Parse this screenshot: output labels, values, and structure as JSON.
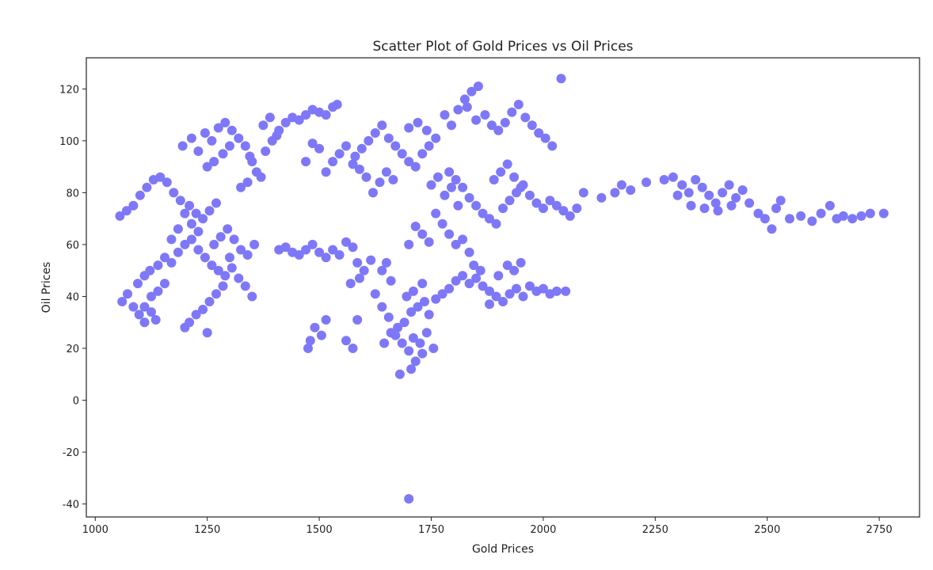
{
  "chart_data": {
    "type": "scatter",
    "title": "Scatter Plot of Gold Prices vs Oil Prices",
    "xlabel": "Gold Prices",
    "ylabel": "Oil Prices",
    "xlim": [
      980,
      2840
    ],
    "ylim": [
      -45,
      132
    ],
    "xticks": [
      1000,
      1250,
      1500,
      1750,
      2000,
      2250,
      2500,
      2750
    ],
    "yticks": [
      -40,
      -20,
      0,
      20,
      40,
      60,
      80,
      100,
      120
    ],
    "grid": false,
    "color": "#7e78f8",
    "series": [
      {
        "values": [
          [
            1055,
            71
          ],
          [
            1070,
            73
          ],
          [
            1085,
            75
          ],
          [
            1100,
            79
          ],
          [
            1115,
            82
          ],
          [
            1130,
            85
          ],
          [
            1145,
            86
          ],
          [
            1160,
            84
          ],
          [
            1175,
            80
          ],
          [
            1190,
            77
          ],
          [
            1210,
            75
          ],
          [
            1225,
            72
          ],
          [
            1240,
            70
          ],
          [
            1255,
            73
          ],
          [
            1270,
            76
          ],
          [
            1195,
            98
          ],
          [
            1215,
            101
          ],
          [
            1230,
            96
          ],
          [
            1245,
            103
          ],
          [
            1260,
            100
          ],
          [
            1275,
            105
          ],
          [
            1290,
            107
          ],
          [
            1305,
            104
          ],
          [
            1320,
            101
          ],
          [
            1335,
            98
          ],
          [
            1345,
            94
          ],
          [
            1285,
            95
          ],
          [
            1300,
            98
          ],
          [
            1265,
            92
          ],
          [
            1250,
            90
          ],
          [
            1350,
            92
          ],
          [
            1360,
            88
          ],
          [
            1370,
            86
          ],
          [
            1340,
            84
          ],
          [
            1325,
            82
          ],
          [
            1380,
            96
          ],
          [
            1395,
            100
          ],
          [
            1410,
            104
          ],
          [
            1425,
            107
          ],
          [
            1440,
            109
          ],
          [
            1455,
            108
          ],
          [
            1470,
            110
          ],
          [
            1485,
            112
          ],
          [
            1500,
            111
          ],
          [
            1515,
            110
          ],
          [
            1530,
            113
          ],
          [
            1540,
            114
          ],
          [
            1375,
            106
          ],
          [
            1390,
            109
          ],
          [
            1405,
            102
          ],
          [
            1060,
            38
          ],
          [
            1072,
            41
          ],
          [
            1085,
            36
          ],
          [
            1098,
            33
          ],
          [
            1110,
            30
          ],
          [
            1125,
            34
          ],
          [
            1135,
            31
          ],
          [
            1095,
            45
          ],
          [
            1110,
            48
          ],
          [
            1122,
            50
          ],
          [
            1140,
            52
          ],
          [
            1155,
            55
          ],
          [
            1170,
            53
          ],
          [
            1185,
            57
          ],
          [
            1200,
            60
          ],
          [
            1215,
            62
          ],
          [
            1230,
            58
          ],
          [
            1245,
            55
          ],
          [
            1260,
            52
          ],
          [
            1275,
            50
          ],
          [
            1290,
            48
          ],
          [
            1305,
            51
          ],
          [
            1320,
            47
          ],
          [
            1335,
            44
          ],
          [
            1350,
            40
          ],
          [
            1265,
            60
          ],
          [
            1280,
            63
          ],
          [
            1295,
            66
          ],
          [
            1310,
            62
          ],
          [
            1325,
            58
          ],
          [
            1340,
            56
          ],
          [
            1355,
            60
          ],
          [
            1300,
            55
          ],
          [
            1285,
            44
          ],
          [
            1270,
            41
          ],
          [
            1255,
            38
          ],
          [
            1240,
            35
          ],
          [
            1225,
            33
          ],
          [
            1210,
            30
          ],
          [
            1200,
            28
          ],
          [
            1250,
            26
          ],
          [
            1230,
            65
          ],
          [
            1215,
            68
          ],
          [
            1200,
            72
          ],
          [
            1185,
            66
          ],
          [
            1170,
            62
          ],
          [
            1155,
            45
          ],
          [
            1140,
            42
          ],
          [
            1125,
            40
          ],
          [
            1110,
            36
          ],
          [
            1410,
            58
          ],
          [
            1425,
            59
          ],
          [
            1440,
            57
          ],
          [
            1455,
            56
          ],
          [
            1470,
            58
          ],
          [
            1485,
            60
          ],
          [
            1500,
            57
          ],
          [
            1515,
            55
          ],
          [
            1530,
            58
          ],
          [
            1545,
            56
          ],
          [
            1560,
            61
          ],
          [
            1575,
            59
          ],
          [
            1585,
            53
          ],
          [
            1600,
            50
          ],
          [
            1615,
            54
          ],
          [
            1570,
            45
          ],
          [
            1590,
            47
          ],
          [
            1480,
            23
          ],
          [
            1490,
            28
          ],
          [
            1505,
            25
          ],
          [
            1515,
            31
          ],
          [
            1475,
            20
          ],
          [
            1560,
            23
          ],
          [
            1575,
            20
          ],
          [
            1585,
            31
          ],
          [
            1640,
            50
          ],
          [
            1650,
            53
          ],
          [
            1660,
            46
          ],
          [
            1625,
            41
          ],
          [
            1640,
            36
          ],
          [
            1655,
            32
          ],
          [
            1670,
            25
          ],
          [
            1685,
            22
          ],
          [
            1700,
            19
          ],
          [
            1715,
            15
          ],
          [
            1730,
            18
          ],
          [
            1710,
            24
          ],
          [
            1725,
            22
          ],
          [
            1740,
            26
          ],
          [
            1755,
            20
          ],
          [
            1745,
            33
          ],
          [
            1735,
            38
          ],
          [
            1720,
            36
          ],
          [
            1705,
            34
          ],
          [
            1690,
            30
          ],
          [
            1675,
            28
          ],
          [
            1660,
            26
          ],
          [
            1645,
            22
          ],
          [
            1680,
            10
          ],
          [
            1705,
            12
          ],
          [
            1695,
            40
          ],
          [
            1710,
            42
          ],
          [
            1730,
            45
          ],
          [
            1760,
            39
          ],
          [
            1775,
            41
          ],
          [
            1790,
            43
          ],
          [
            1805,
            46
          ],
          [
            1820,
            48
          ],
          [
            1835,
            45
          ],
          [
            1850,
            47
          ],
          [
            1865,
            44
          ],
          [
            1880,
            42
          ],
          [
            1895,
            40
          ],
          [
            1910,
            38
          ],
          [
            1925,
            41
          ],
          [
            1940,
            43
          ],
          [
            1955,
            40
          ],
          [
            1970,
            44
          ],
          [
            1985,
            42
          ],
          [
            2000,
            43
          ],
          [
            2015,
            41
          ],
          [
            2030,
            42
          ],
          [
            2050,
            42
          ],
          [
            1880,
            37
          ],
          [
            1900,
            48
          ],
          [
            1920,
            52
          ],
          [
            1935,
            50
          ],
          [
            1950,
            53
          ],
          [
            1860,
            50
          ],
          [
            1845,
            52
          ],
          [
            1580,
            94
          ],
          [
            1595,
            97
          ],
          [
            1610,
            100
          ],
          [
            1625,
            103
          ],
          [
            1640,
            106
          ],
          [
            1655,
            101
          ],
          [
            1670,
            98
          ],
          [
            1685,
            95
          ],
          [
            1700,
            92
          ],
          [
            1715,
            90
          ],
          [
            1730,
            95
          ],
          [
            1745,
            98
          ],
          [
            1760,
            101
          ],
          [
            1650,
            88
          ],
          [
            1665,
            85
          ],
          [
            1635,
            84
          ],
          [
            1620,
            80
          ],
          [
            1605,
            86
          ],
          [
            1590,
            89
          ],
          [
            1575,
            91
          ],
          [
            1560,
            98
          ],
          [
            1545,
            95
          ],
          [
            1530,
            92
          ],
          [
            1515,
            88
          ],
          [
            1500,
            97
          ],
          [
            1485,
            99
          ],
          [
            1470,
            92
          ],
          [
            1700,
            105
          ],
          [
            1720,
            107
          ],
          [
            1740,
            104
          ],
          [
            1780,
            110
          ],
          [
            1795,
            106
          ],
          [
            1810,
            112
          ],
          [
            1825,
            116
          ],
          [
            1840,
            119
          ],
          [
            1855,
            121
          ],
          [
            1830,
            113
          ],
          [
            1850,
            108
          ],
          [
            1870,
            110
          ],
          [
            1885,
            106
          ],
          [
            1900,
            104
          ],
          [
            1915,
            107
          ],
          [
            1930,
            111
          ],
          [
            1945,
            114
          ],
          [
            1960,
            109
          ],
          [
            1975,
            106
          ],
          [
            1990,
            103
          ],
          [
            2005,
            101
          ],
          [
            2020,
            98
          ],
          [
            2040,
            124
          ],
          [
            1790,
            88
          ],
          [
            1805,
            85
          ],
          [
            1820,
            82
          ],
          [
            1835,
            78
          ],
          [
            1850,
            75
          ],
          [
            1865,
            72
          ],
          [
            1880,
            70
          ],
          [
            1895,
            68
          ],
          [
            1910,
            74
          ],
          [
            1925,
            77
          ],
          [
            1940,
            80
          ],
          [
            1955,
            83
          ],
          [
            1970,
            79
          ],
          [
            1985,
            76
          ],
          [
            2000,
            74
          ],
          [
            2015,
            77
          ],
          [
            2030,
            75
          ],
          [
            2045,
            73
          ],
          [
            2060,
            71
          ],
          [
            2075,
            74
          ],
          [
            1760,
            72
          ],
          [
            1775,
            68
          ],
          [
            1790,
            64
          ],
          [
            1805,
            60
          ],
          [
            1820,
            62
          ],
          [
            1835,
            57
          ],
          [
            1745,
            61
          ],
          [
            1730,
            64
          ],
          [
            1715,
            67
          ],
          [
            1700,
            60
          ],
          [
            1780,
            79
          ],
          [
            1795,
            82
          ],
          [
            1810,
            75
          ],
          [
            1765,
            86
          ],
          [
            1750,
            83
          ],
          [
            1890,
            85
          ],
          [
            1905,
            88
          ],
          [
            1920,
            91
          ],
          [
            1935,
            86
          ],
          [
            1950,
            82
          ],
          [
            2090,
            80
          ],
          [
            2130,
            78
          ],
          [
            2160,
            80
          ],
          [
            2175,
            83
          ],
          [
            2195,
            81
          ],
          [
            2230,
            84
          ],
          [
            2270,
            85
          ],
          [
            2290,
            86
          ],
          [
            2310,
            83
          ],
          [
            2325,
            80
          ],
          [
            2340,
            85
          ],
          [
            2355,
            82
          ],
          [
            2370,
            79
          ],
          [
            2385,
            76
          ],
          [
            2400,
            80
          ],
          [
            2415,
            83
          ],
          [
            2430,
            78
          ],
          [
            2445,
            81
          ],
          [
            2300,
            79
          ],
          [
            2330,
            75
          ],
          [
            2360,
            74
          ],
          [
            2390,
            73
          ],
          [
            2420,
            75
          ],
          [
            2460,
            76
          ],
          [
            2480,
            72
          ],
          [
            2495,
            70
          ],
          [
            2510,
            66
          ],
          [
            2520,
            74
          ],
          [
            2530,
            77
          ],
          [
            2550,
            70
          ],
          [
            2575,
            71
          ],
          [
            2600,
            69
          ],
          [
            2620,
            72
          ],
          [
            2640,
            75
          ],
          [
            2655,
            70
          ],
          [
            2670,
            71
          ],
          [
            2690,
            70
          ],
          [
            2710,
            71
          ],
          [
            2730,
            72
          ],
          [
            2760,
            72
          ],
          [
            1700,
            -38
          ]
        ]
      }
    ]
  }
}
